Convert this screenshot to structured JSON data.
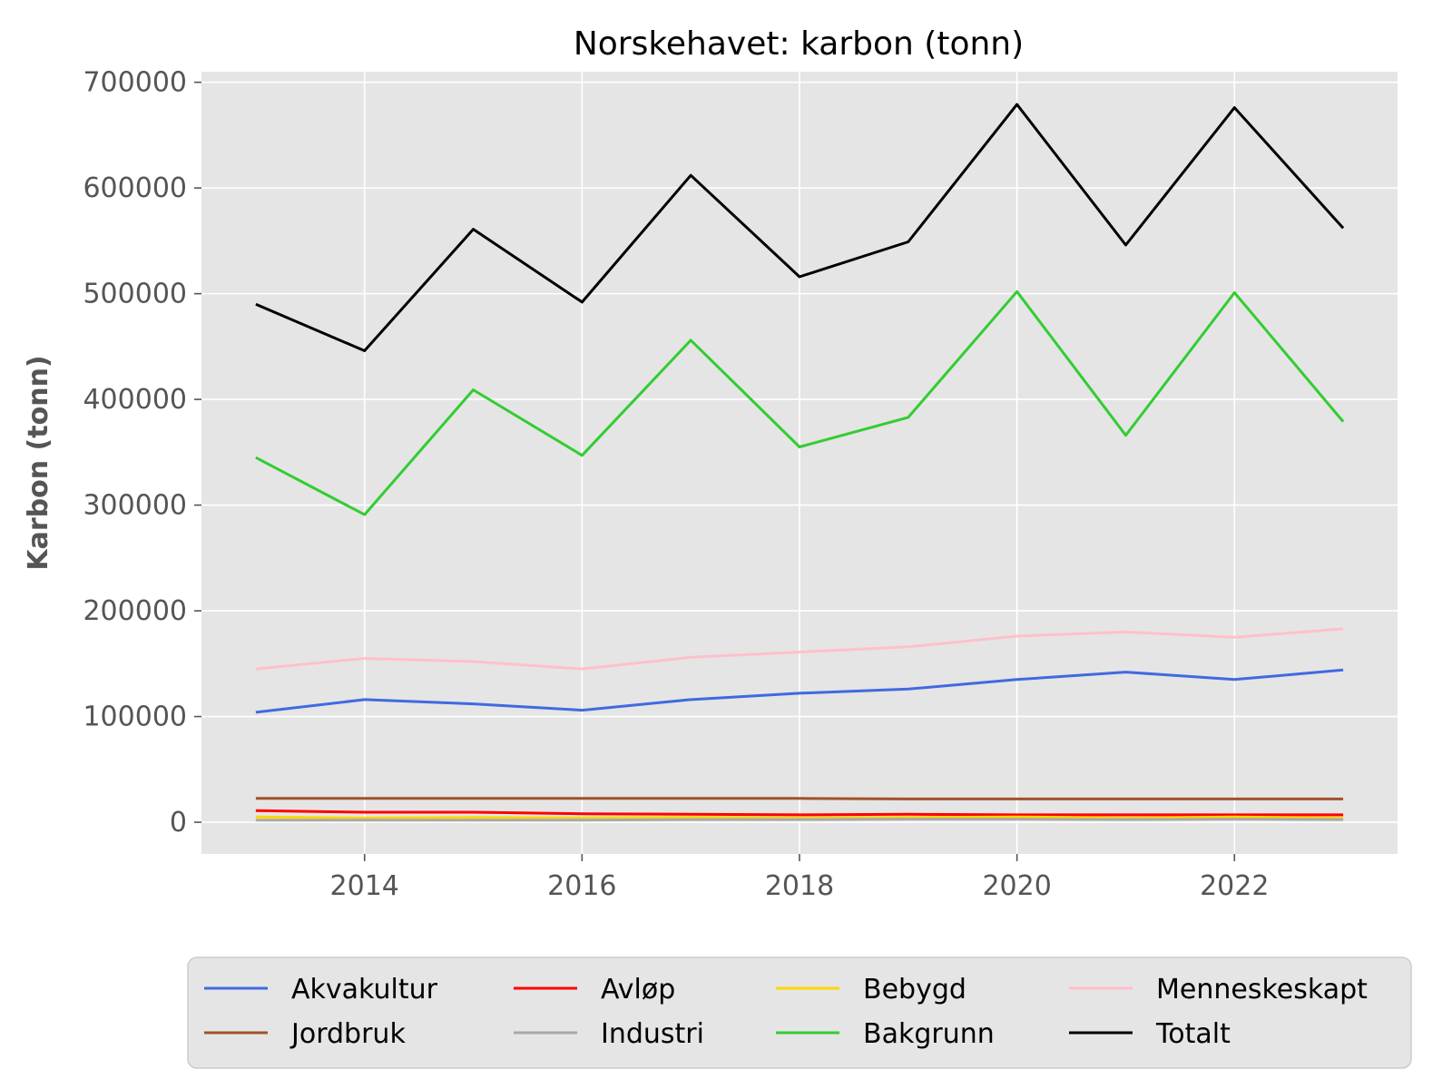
{
  "chart_data": {
    "type": "line",
    "title": "Norskehavet: karbon (tonn)",
    "xlabel": "",
    "ylabel": "Karbon (tonn)",
    "x": [
      2013,
      2014,
      2015,
      2016,
      2017,
      2018,
      2019,
      2020,
      2021,
      2022,
      2023
    ],
    "xlim": [
      2012.5,
      2023.5
    ],
    "ylim": [
      -30000,
      710000
    ],
    "x_ticks": [
      "2014",
      "2016",
      "2018",
      "2020",
      "2022"
    ],
    "y_ticks": [
      "0",
      "100000",
      "200000",
      "300000",
      "400000",
      "500000",
      "600000",
      "700000"
    ],
    "grid": true,
    "legend_position": "bottom",
    "series": [
      {
        "name": "Akvakultur",
        "color": "#4169e1",
        "values": [
          104000,
          116000,
          112000,
          106000,
          116000,
          122000,
          126000,
          135000,
          142000,
          135000,
          144000
        ]
      },
      {
        "name": "Avløp",
        "color": "#ff0000",
        "values": [
          11000,
          9500,
          9500,
          8000,
          7500,
          7000,
          7500,
          7000,
          7000,
          7000,
          7000
        ]
      },
      {
        "name": "Bebygd",
        "color": "#ffd700",
        "values": [
          5000,
          4000,
          4500,
          4000,
          4500,
          4000,
          4500,
          5000,
          4000,
          5000,
          4000
        ]
      },
      {
        "name": "Menneskeskapt",
        "color": "#ffc0cb",
        "values": [
          145000,
          155000,
          152000,
          145000,
          156000,
          161000,
          166000,
          176000,
          180000,
          175000,
          183000
        ]
      },
      {
        "name": "Jordbruk",
        "color": "#a0522d",
        "values": [
          22500,
          22500,
          22500,
          22500,
          22500,
          22500,
          22000,
          22000,
          22000,
          22000,
          22000
        ]
      },
      {
        "name": "Industri",
        "color": "#a9a9a9",
        "values": [
          2000,
          2000,
          2000,
          2000,
          2500,
          2500,
          3000,
          3000,
          2500,
          3000,
          2500
        ]
      },
      {
        "name": "Bakgrunn",
        "color": "#32cd32",
        "values": [
          345000,
          291000,
          409000,
          347000,
          456000,
          355000,
          383000,
          502000,
          366000,
          501000,
          379000
        ]
      },
      {
        "name": "Totalt",
        "color": "#000000",
        "values": [
          490000,
          446000,
          561000,
          492000,
          612000,
          516000,
          549000,
          679000,
          546000,
          676000,
          562000
        ]
      }
    ]
  }
}
